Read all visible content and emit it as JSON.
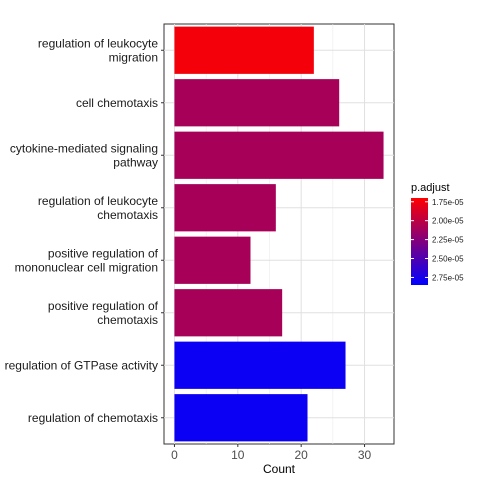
{
  "chart_data": {
    "type": "bar",
    "orientation": "horizontal",
    "categories": [
      [
        "regulation of leukocyte",
        "migration"
      ],
      [
        "cell chemotaxis"
      ],
      [
        "cytokine-mediated signaling",
        "pathway"
      ],
      [
        "regulation of leukocyte",
        "chemotaxis"
      ],
      [
        "positive regulation of",
        "mononuclear cell migration"
      ],
      [
        "positive regulation of",
        "chemotaxis"
      ],
      [
        "regulation of GTPase activity"
      ],
      [
        "regulation of chemotaxis"
      ]
    ],
    "values": [
      22,
      26,
      33,
      16,
      12,
      17,
      27,
      21
    ],
    "p_adjust": [
      1.75e-05,
      2.1e-05,
      2.1e-05,
      2.1e-05,
      2.1e-05,
      2.1e-05,
      2.8e-05,
      2.8e-05
    ],
    "xlabel": "Count",
    "ylabel": "",
    "xlim": [
      -1.65,
      34.65
    ],
    "xticks": [
      0,
      10,
      20,
      30
    ],
    "grid": true,
    "legend": {
      "title": "p.adjust",
      "placement": "right",
      "ticks": [
        1.75e-05,
        2e-05,
        2.25e-05,
        2.5e-05,
        2.75e-05
      ],
      "tick_labels": [
        "1.75e-05",
        "2.00e-05",
        "2.25e-05",
        "2.50e-05",
        "2.75e-05"
      ],
      "range": [
        1.7e-05,
        2.85e-05
      ],
      "color_low": "#ff0000",
      "color_high": "#0000ff"
    }
  }
}
